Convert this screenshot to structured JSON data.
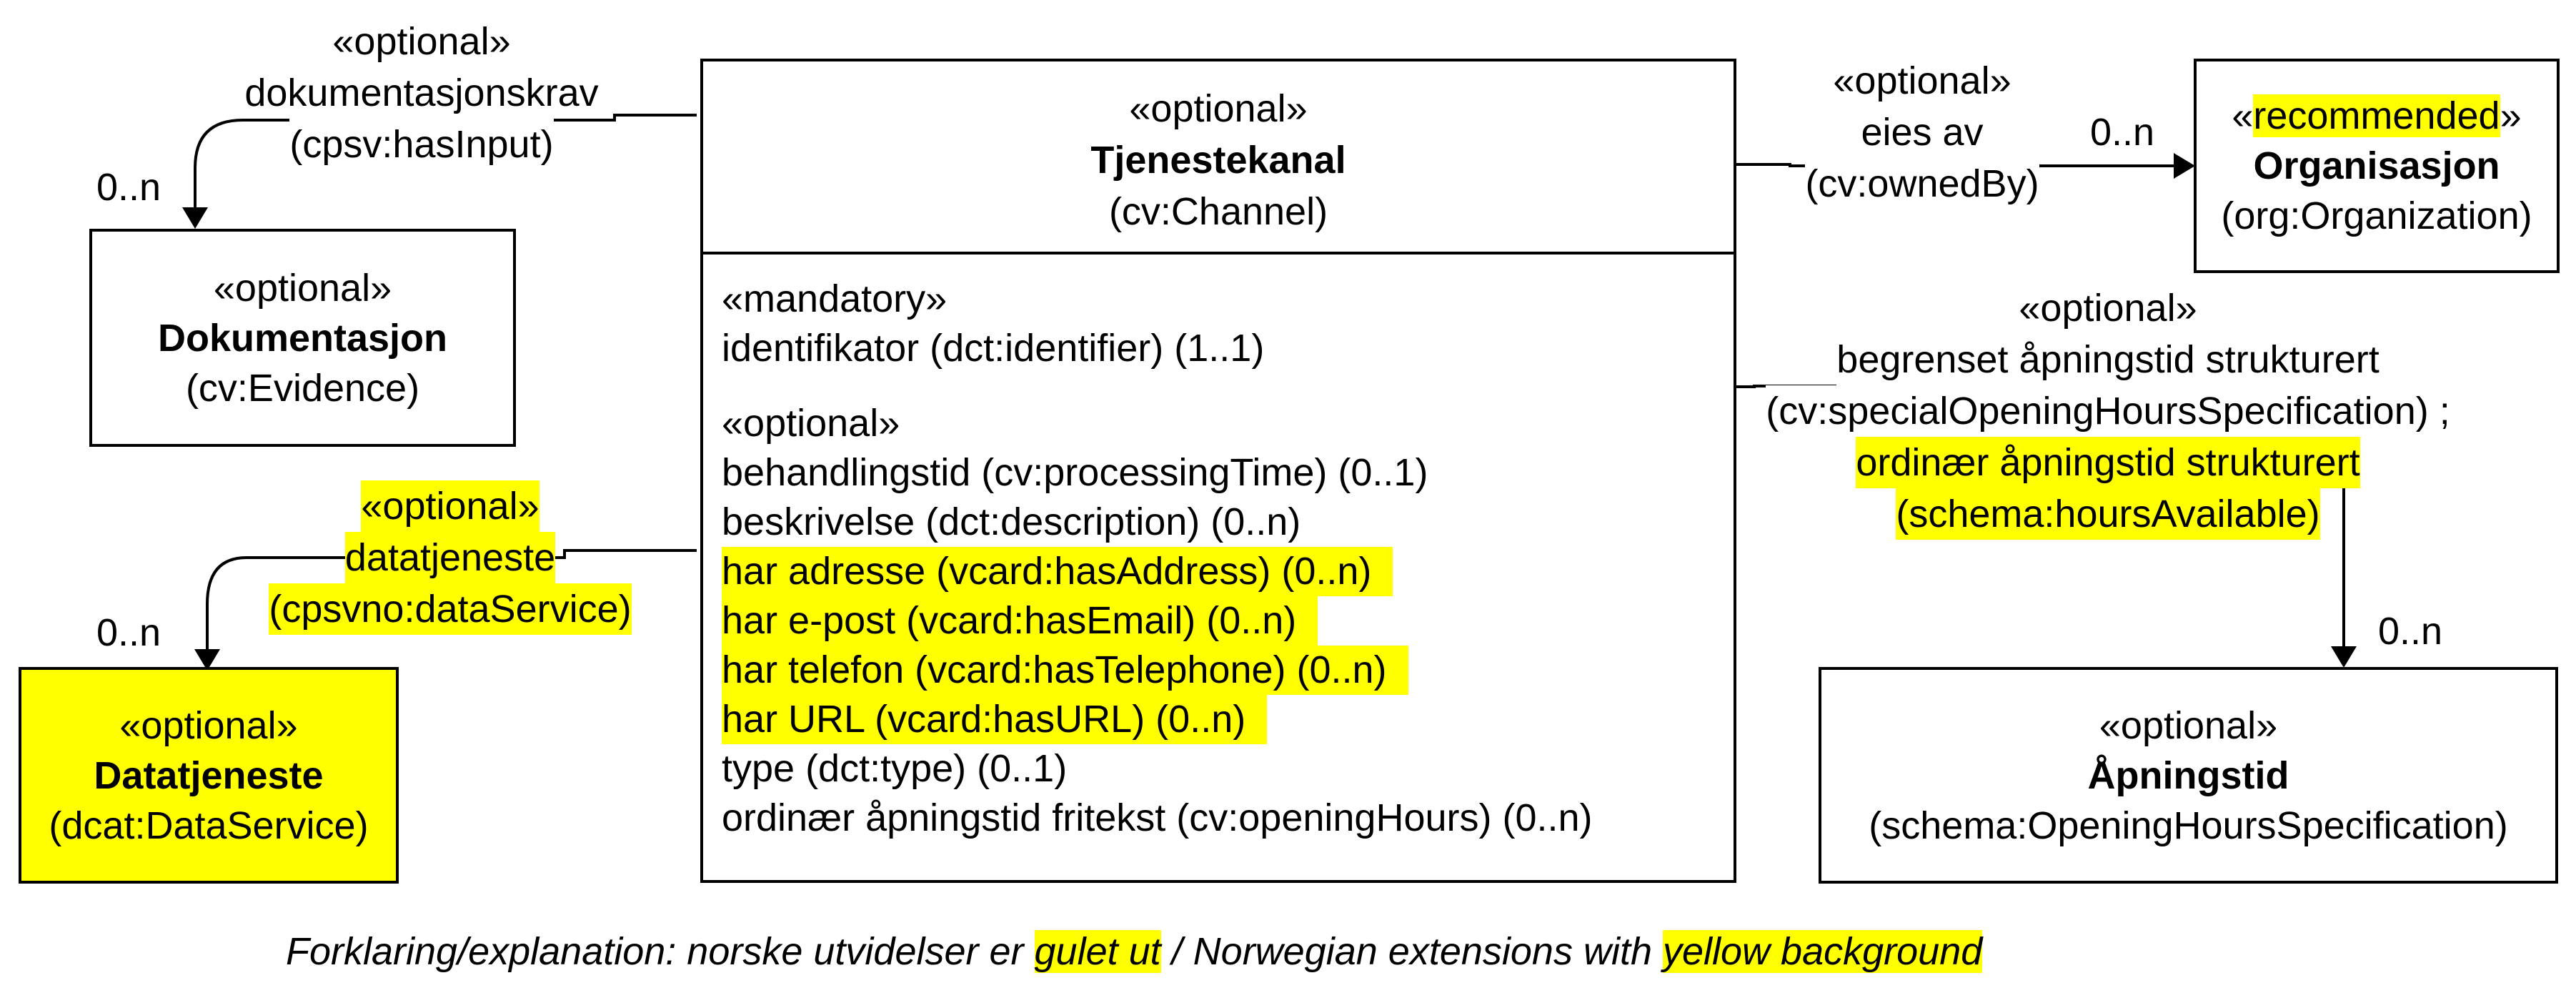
{
  "classes": {
    "channel": {
      "stereotype": "«optional»",
      "name": "Tjenestekanal",
      "uri": "(cv:Channel)"
    },
    "dokumentasjon": {
      "stereotype": "«optional»",
      "name": "Dokumentasjon",
      "uri": "(cv:Evidence)"
    },
    "datatjeneste": {
      "stereotype": "«optional»",
      "name": "Datatjeneste",
      "uri": "(dcat:DataService)"
    },
    "organisasjon": {
      "stereotype_open": "«",
      "stereotype_word": "recommended",
      "stereotype_close": "»",
      "name": "Organisasjon",
      "uri": "(org:Organization)"
    },
    "apningstid": {
      "stereotype": "«optional»",
      "name": "Åpningstid",
      "uri": "(schema:OpeningHoursSpecification)"
    }
  },
  "attributes": {
    "mandatory_header": "«mandatory»",
    "mandatory": [
      "identifikator (dct:identifier) (1..1)"
    ],
    "optional_header": "«optional»",
    "optional": [
      {
        "text": "behandlingstid (cv:processingTime) (0..1)",
        "highlight": false
      },
      {
        "text": "beskrivelse (dct:description) (0..n)",
        "highlight": false
      },
      {
        "text": "har adresse (vcard:hasAddress) (0..n)",
        "highlight": true
      },
      {
        "text": "har e-post (vcard:hasEmail) (0..n)",
        "highlight": true
      },
      {
        "text": "har telefon (vcard:hasTelephone) (0..n)",
        "highlight": true
      },
      {
        "text": "har URL (vcard:hasURL) (0..n)",
        "highlight": true
      },
      {
        "text": "type (dct:type) (0..1)",
        "highlight": false
      },
      {
        "text": "ordinær åpningstid fritekst (cv:openingHours) (0..n)",
        "highlight": false
      }
    ]
  },
  "associations": {
    "dokumentasjonskrav": {
      "stereotype": "«optional»",
      "name": "dokumentasjonskrav",
      "uri": "(cpsv:hasInput)",
      "multiplicity": "0..n"
    },
    "datatjeneste": {
      "stereotype": "«optional»",
      "name": "datatjeneste",
      "uri": "(cpsvno:dataService)",
      "multiplicity": "0..n"
    },
    "eies_av": {
      "stereotype": "«optional»",
      "name": "eies av",
      "uri": "(cv:ownedBy)",
      "multiplicity": "0..n"
    },
    "apningstid": {
      "stereotype": "«optional»",
      "line1": "begrenset åpningstid strukturert",
      "line2": "(cv:specialOpeningHoursSpecification) ;",
      "line3": "ordinær åpningstid strukturert",
      "line4": "(schema:hoursAvailable)",
      "multiplicity": "0..n"
    }
  },
  "legend": {
    "prefix": "Forklaring/explanation: norske utvidelser er ",
    "hl1": "gulet ut",
    "middle": " / Norwegian extensions with ",
    "hl2": "yellow background"
  },
  "colors": {
    "highlight": "#ffff00",
    "line": "#000000"
  }
}
